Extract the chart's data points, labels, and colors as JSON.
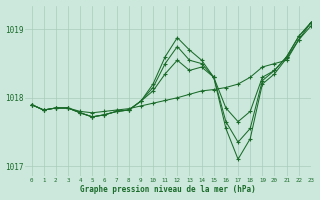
{
  "title": "Graphe pression niveau de la mer (hPa)",
  "bg_color": "#cce8dc",
  "grid_color": "#aaccbb",
  "line_color": "#1a6b2a",
  "xlim": [
    -0.5,
    23
  ],
  "ylim": [
    1016.85,
    1019.35
  ],
  "yticks": [
    1017,
    1018,
    1019
  ],
  "xticks": [
    0,
    1,
    2,
    3,
    4,
    5,
    6,
    7,
    8,
    9,
    10,
    11,
    12,
    13,
    14,
    15,
    16,
    17,
    18,
    19,
    20,
    21,
    22,
    23
  ],
  "series": [
    [
      1017.9,
      1017.82,
      1017.85,
      1017.85,
      1017.8,
      1017.78,
      1017.8,
      1017.82,
      1017.84,
      1017.88,
      1017.92,
      1017.96,
      1018.0,
      1018.05,
      1018.1,
      1018.12,
      1018.15,
      1018.2,
      1018.3,
      1018.45,
      1018.5,
      1018.55,
      1018.85,
      1019.05
    ],
    [
      1017.9,
      1017.82,
      1017.85,
      1017.85,
      1017.78,
      1017.72,
      1017.75,
      1017.8,
      1017.82,
      1017.95,
      1018.1,
      1018.35,
      1018.55,
      1018.4,
      1018.45,
      1018.3,
      1017.85,
      1017.65,
      1017.8,
      1018.3,
      1018.4,
      1018.6,
      1018.9,
      1019.1
    ],
    [
      1017.9,
      1017.82,
      1017.85,
      1017.85,
      1017.78,
      1017.72,
      1017.75,
      1017.8,
      1017.82,
      1017.95,
      1018.15,
      1018.5,
      1018.75,
      1018.55,
      1018.5,
      1018.3,
      1017.65,
      1017.35,
      1017.55,
      1018.25,
      1018.4,
      1018.6,
      1018.9,
      1019.1
    ],
    [
      1017.9,
      1017.82,
      1017.85,
      1017.85,
      1017.78,
      1017.72,
      1017.75,
      1017.8,
      1017.82,
      1017.95,
      1018.2,
      1018.6,
      1018.88,
      1018.7,
      1018.55,
      1018.3,
      1017.55,
      1017.1,
      1017.4,
      1018.2,
      1018.35,
      1018.58,
      1018.85,
      1019.1
    ]
  ]
}
